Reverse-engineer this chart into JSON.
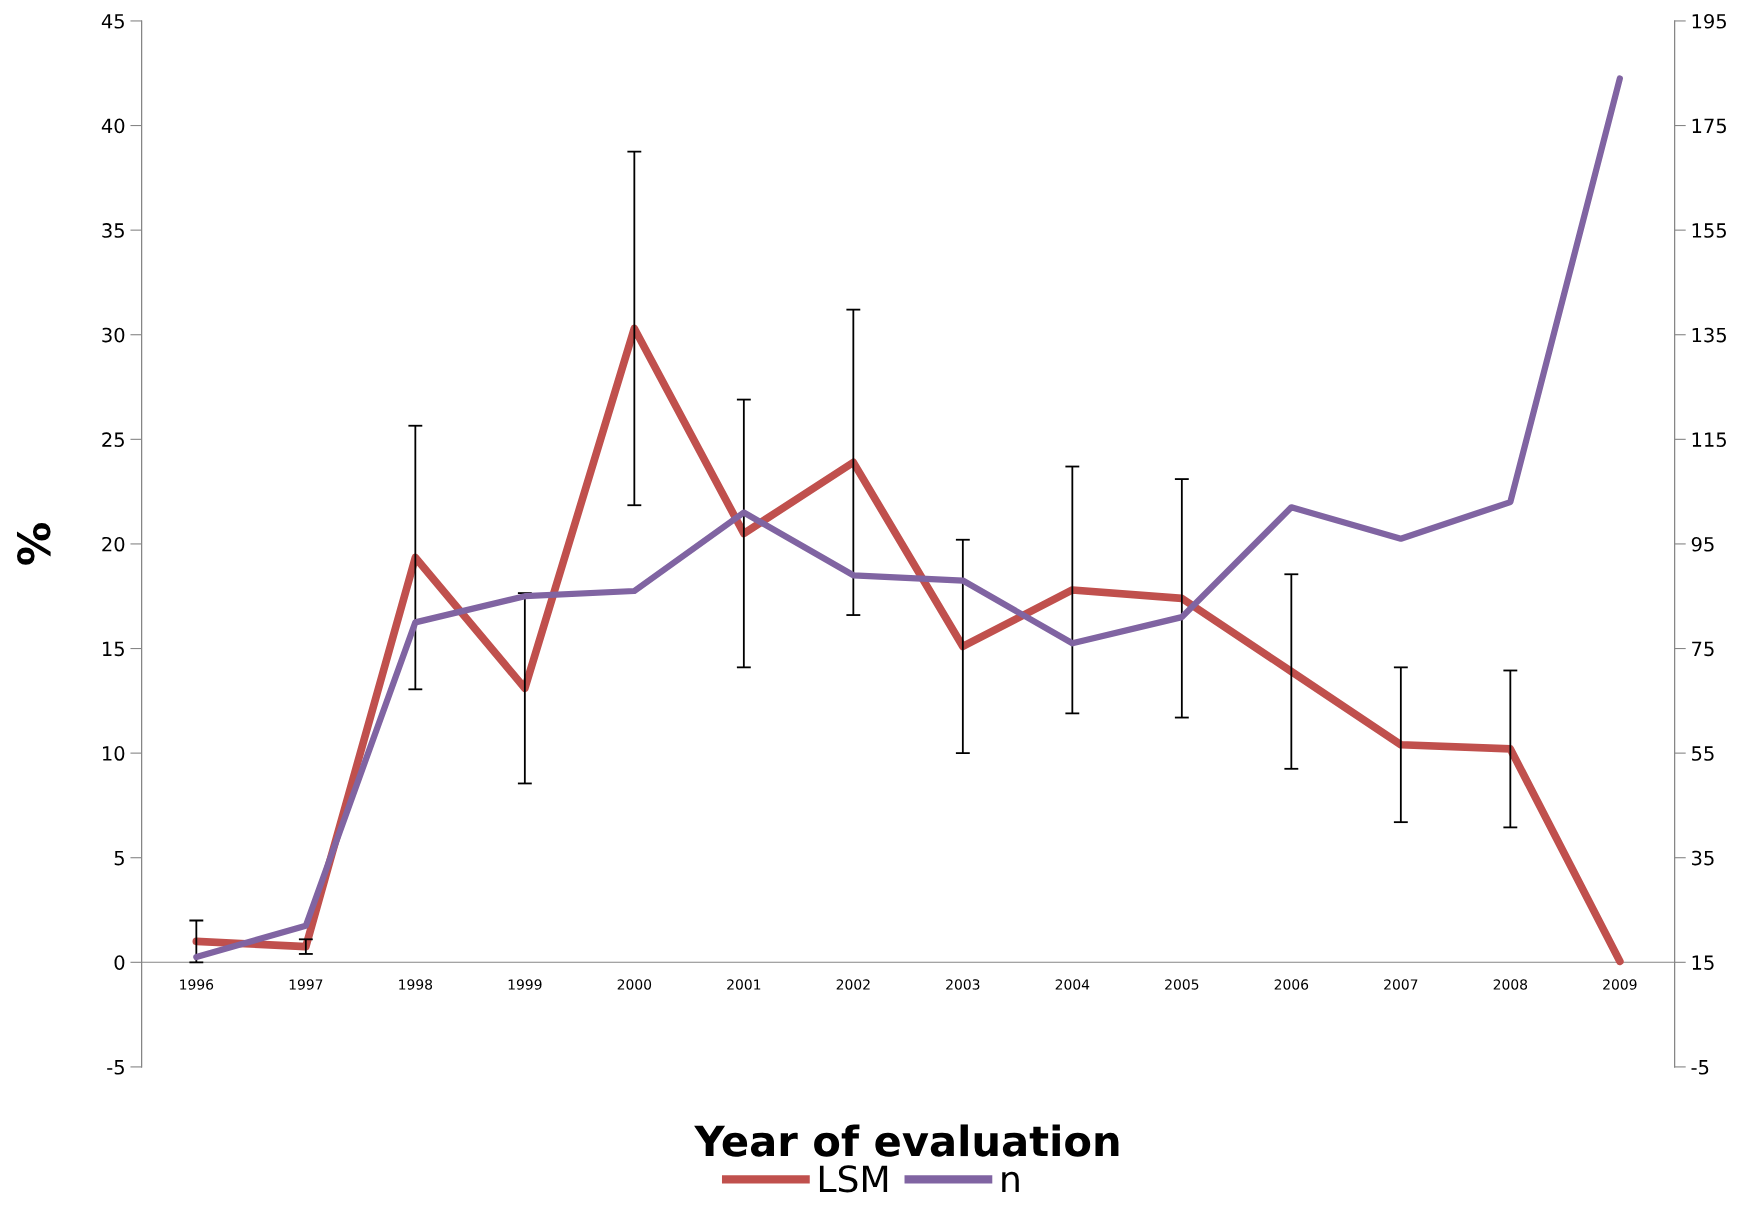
{
  "chart_data": {
    "type": "line",
    "xlabel": "Year of evaluation",
    "ylabel": "%",
    "categories": [
      "1996",
      "1997",
      "1998",
      "1999",
      "2000",
      "2001",
      "2002",
      "2003",
      "2004",
      "2005",
      "2006",
      "2007",
      "2008",
      "2009"
    ],
    "series": [
      {
        "name": "LSM",
        "color": "#c0504d",
        "values": [
          1.0,
          0.75,
          19.35,
          13.1,
          30.3,
          20.5,
          23.9,
          15.1,
          17.8,
          17.4,
          13.9,
          10.4,
          10.2,
          0.05
        ],
        "errors": [
          1.0,
          0.35,
          6.3,
          4.55,
          8.45,
          6.4,
          7.3,
          5.1,
          5.9,
          5.7,
          4.65,
          3.7,
          3.75,
          null
        ]
      },
      {
        "name": "n",
        "color": "#8064a2",
        "axis": "y2",
        "values": [
          16,
          22,
          80,
          85,
          86,
          101,
          89,
          88,
          76,
          81,
          102,
          96,
          103,
          184
        ]
      }
    ],
    "ylim": [
      -5,
      45
    ],
    "yticks": [
      -5,
      0,
      5,
      10,
      15,
      20,
      25,
      30,
      35,
      40,
      45
    ],
    "y2lim": [
      -5,
      195
    ],
    "y2ticks": [
      -5,
      15,
      35,
      55,
      75,
      95,
      115,
      135,
      155,
      175,
      195
    ],
    "grid": false,
    "legend": "bottom",
    "marker": "none",
    "line_style": "solid"
  }
}
